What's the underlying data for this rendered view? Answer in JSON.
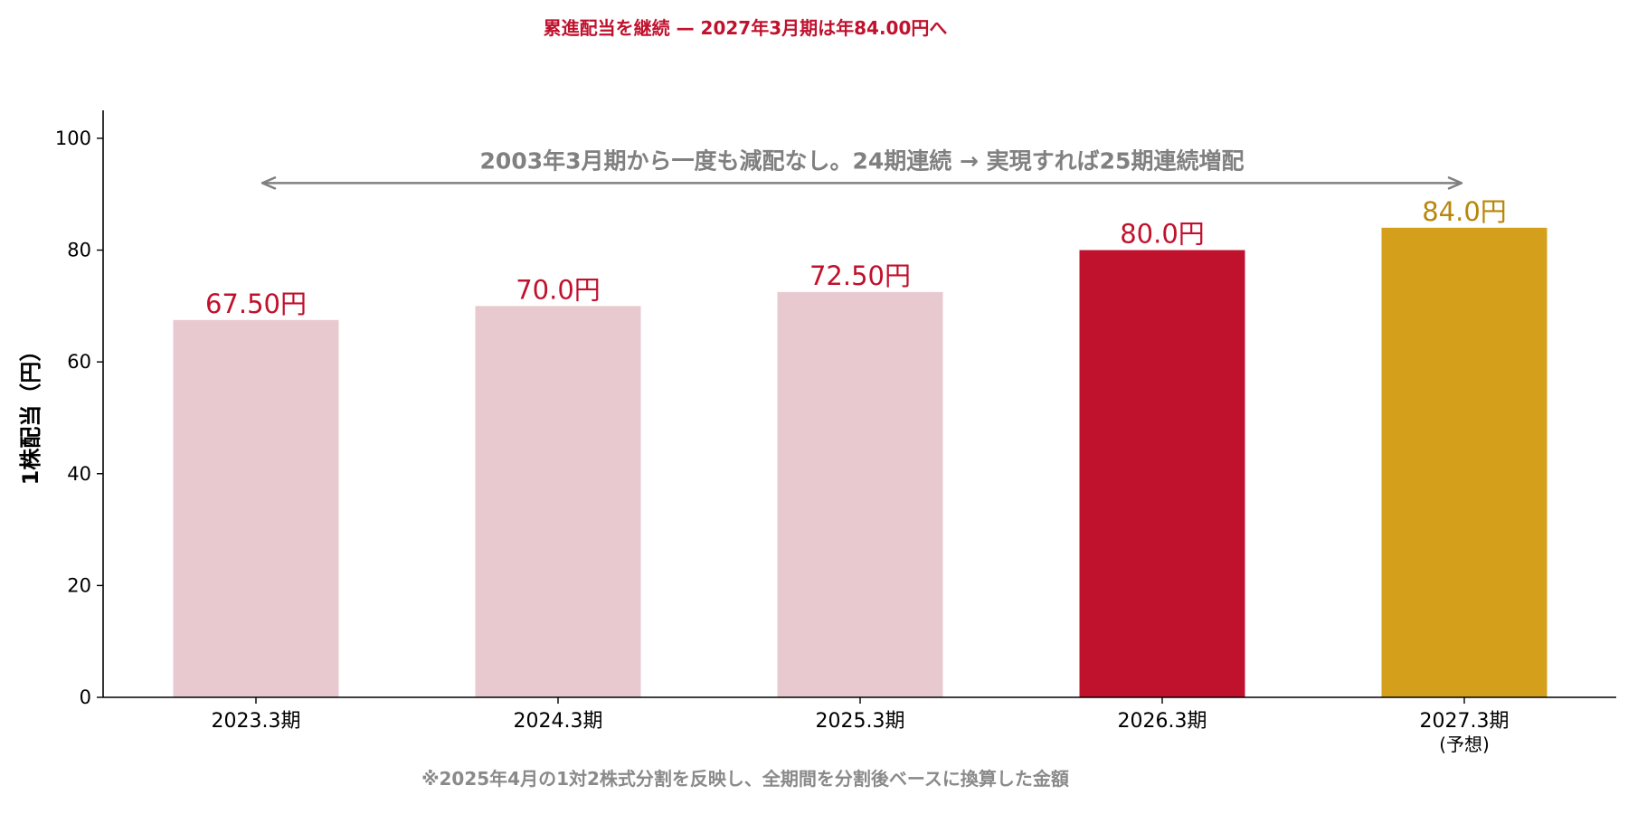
{
  "chart_data": {
    "type": "bar",
    "title": "累進配当を継続 — 2027年3月期は年84.00円へ",
    "ylabel": "1株配当（円）",
    "xlabel": "",
    "ylim": [
      0,
      105
    ],
    "yticks": [
      0,
      20,
      40,
      60,
      80,
      100
    ],
    "grid": false,
    "categories": [
      "2023.3期",
      "2024.3期",
      "2025.3期",
      "2026.3期",
      "2027.3期"
    ],
    "category_sublabels": [
      "",
      "",
      "",
      "",
      "(予想)"
    ],
    "values": [
      67.5,
      70.0,
      72.5,
      80.0,
      84.0
    ],
    "data_labels": [
      "67.50円",
      "70.0円",
      "72.50円",
      "80.0円",
      "84.0円"
    ],
    "bar_colors": [
      "#e8c9cf",
      "#e8c9cf",
      "#e8c9cf",
      "#c0112d",
      "#d4a01c"
    ],
    "label_colors": [
      "#c0112d",
      "#c0112d",
      "#c0112d",
      "#c0112d",
      "#b8860b"
    ],
    "annotation": {
      "text": "2003年3月期から一度も減配なし。24期連続 → 実現すれば25期連続増配",
      "arrow_y_value": 92,
      "from_category": 0,
      "to_category": 4,
      "color": "#808080"
    },
    "footnote": "※2025年4月の1対2株式分割を反映し、全期間を分割後ベースに換算した金額",
    "colors": {
      "title": "#c0112d",
      "axis": "#000000",
      "footnote": "#8a8a8a"
    }
  }
}
